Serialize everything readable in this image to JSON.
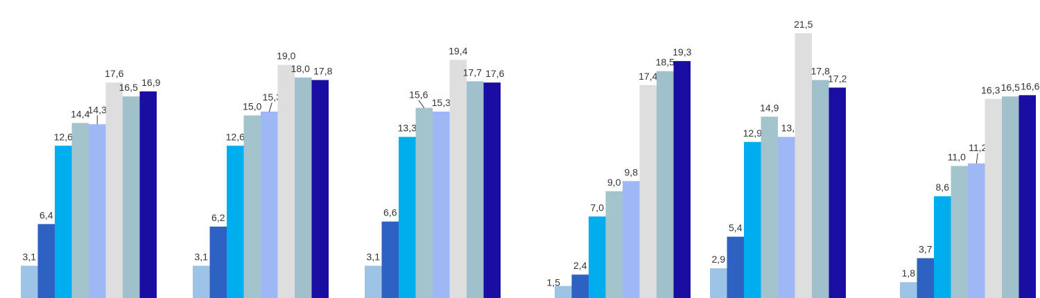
{
  "chart_data": {
    "type": "bar",
    "categories": [
      "",
      "",
      "",
      "",
      "",
      ""
    ],
    "series": [
      {
        "color": "#9dc3e6",
        "values": [
          "3,1",
          "3,1",
          "3,1",
          "1,5",
          "2,9",
          "1,8"
        ]
      },
      {
        "color": "#2e62c2",
        "values": [
          "6,4",
          "6,2",
          "6,6",
          "2,4",
          "5,4",
          "3,7"
        ]
      },
      {
        "color": "#00aeef",
        "values": [
          "12,6",
          "12,6",
          "13,3",
          "7,0",
          "12,9",
          "8,6"
        ]
      },
      {
        "color": "#a3c4cc",
        "values": [
          "14,4",
          "15,0",
          "15,6",
          "9,0",
          "14,9",
          "11,0"
        ]
      },
      {
        "color": "#9db8f5",
        "values": [
          "14,3",
          "15,3",
          "15,3",
          "9,8",
          "13,3",
          "11,2"
        ]
      },
      {
        "color": "#dedede",
        "values": [
          "17,6",
          "19,0",
          "19,4",
          "17,4",
          "21,5",
          "16,3"
        ]
      },
      {
        "color": "#a0c0cb",
        "values": [
          "16,5",
          "18,0",
          "17,7",
          "18,5",
          "17,8",
          "16,5"
        ]
      },
      {
        "color": "#1a0da1",
        "values": [
          "16,9",
          "17,8",
          "17,6",
          "19,3",
          "17,2",
          "16,6"
        ]
      }
    ],
    "ylim": [
      0,
      21.5
    ],
    "grid": false,
    "legend": "none"
  }
}
